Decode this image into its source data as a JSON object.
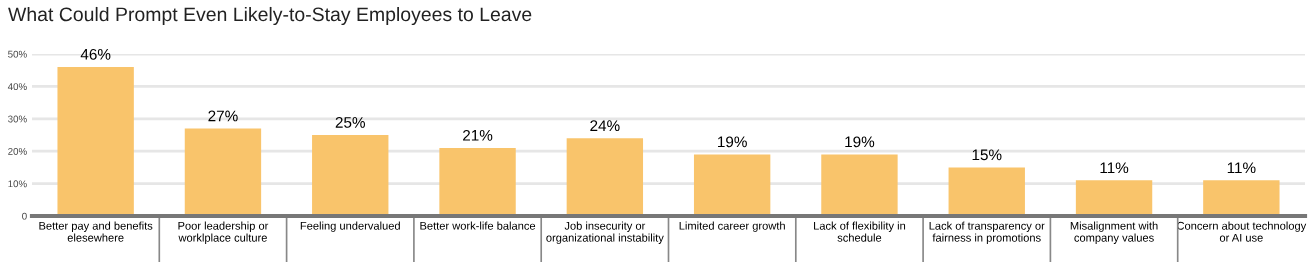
{
  "chart_data": {
    "type": "bar",
    "title": "What Could Prompt Even Likely-to-Stay Employees to Leave",
    "categories": [
      "Better pay and benefits\nelesewhere",
      "Poor leadership or\nworklplace culture",
      "Feeling undervalued",
      "Better work-life balance",
      "Job insecurity or\norganizational instability",
      "Limited career growth",
      "Lack of flexibility in\nschedule",
      "Lack of transparency or\nfairness in promotions",
      "Misalignment with\ncompany values",
      "Concern about technology\nor AI use"
    ],
    "values": [
      46,
      27,
      25,
      21,
      24,
      19,
      19,
      15,
      11,
      11
    ],
    "value_labels": [
      "46%",
      "27%",
      "25%",
      "21%",
      "24%",
      "19%",
      "19%",
      "15%",
      "11%",
      "11%"
    ],
    "color": "#f9c46b",
    "ylim": [
      0,
      50
    ],
    "yticks": [
      0,
      {
        "value": 10,
        "label": "10%"
      },
      {
        "value": 20,
        "label": "20%"
      },
      {
        "value": 30,
        "label": "30%"
      },
      {
        "value": 40,
        "label": "40%"
      },
      {
        "value": 50,
        "label": "50%"
      }
    ],
    "grid": "y",
    "legend": false
  }
}
